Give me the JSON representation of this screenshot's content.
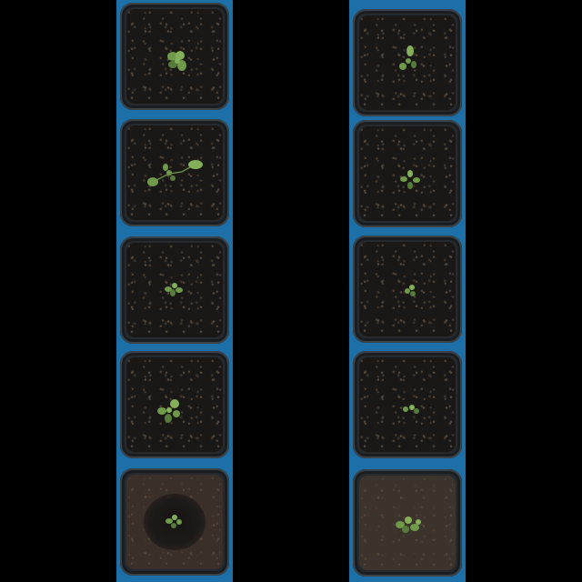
{
  "scene": {
    "description_only_visual": true,
    "background_color": "#000000",
    "tray_color": "#1d6fa8",
    "soil_dark": "#1a1816",
    "soil_light": "#3a2f29",
    "leaf_color": "#6f9a4a"
  },
  "columns": [
    {
      "pots": [
        {
          "plant": "seedling-rosette",
          "soil": "dark"
        },
        {
          "plant": "seedling-elongated",
          "soil": "dark"
        },
        {
          "plant": "seedling-small",
          "soil": "dark"
        },
        {
          "plant": "seedling-rosette",
          "soil": "dark"
        },
        {
          "plant": "seedling-small",
          "soil": "light"
        }
      ]
    },
    {
      "pots": [
        {
          "plant": "seedling-small",
          "soil": "dark"
        },
        {
          "plant": "seedling-small",
          "soil": "dark"
        },
        {
          "plant": "seedling-tiny",
          "soil": "dark"
        },
        {
          "plant": "seedling-tiny",
          "soil": "dark"
        },
        {
          "plant": "seedling-rosette",
          "soil": "light"
        }
      ]
    }
  ]
}
